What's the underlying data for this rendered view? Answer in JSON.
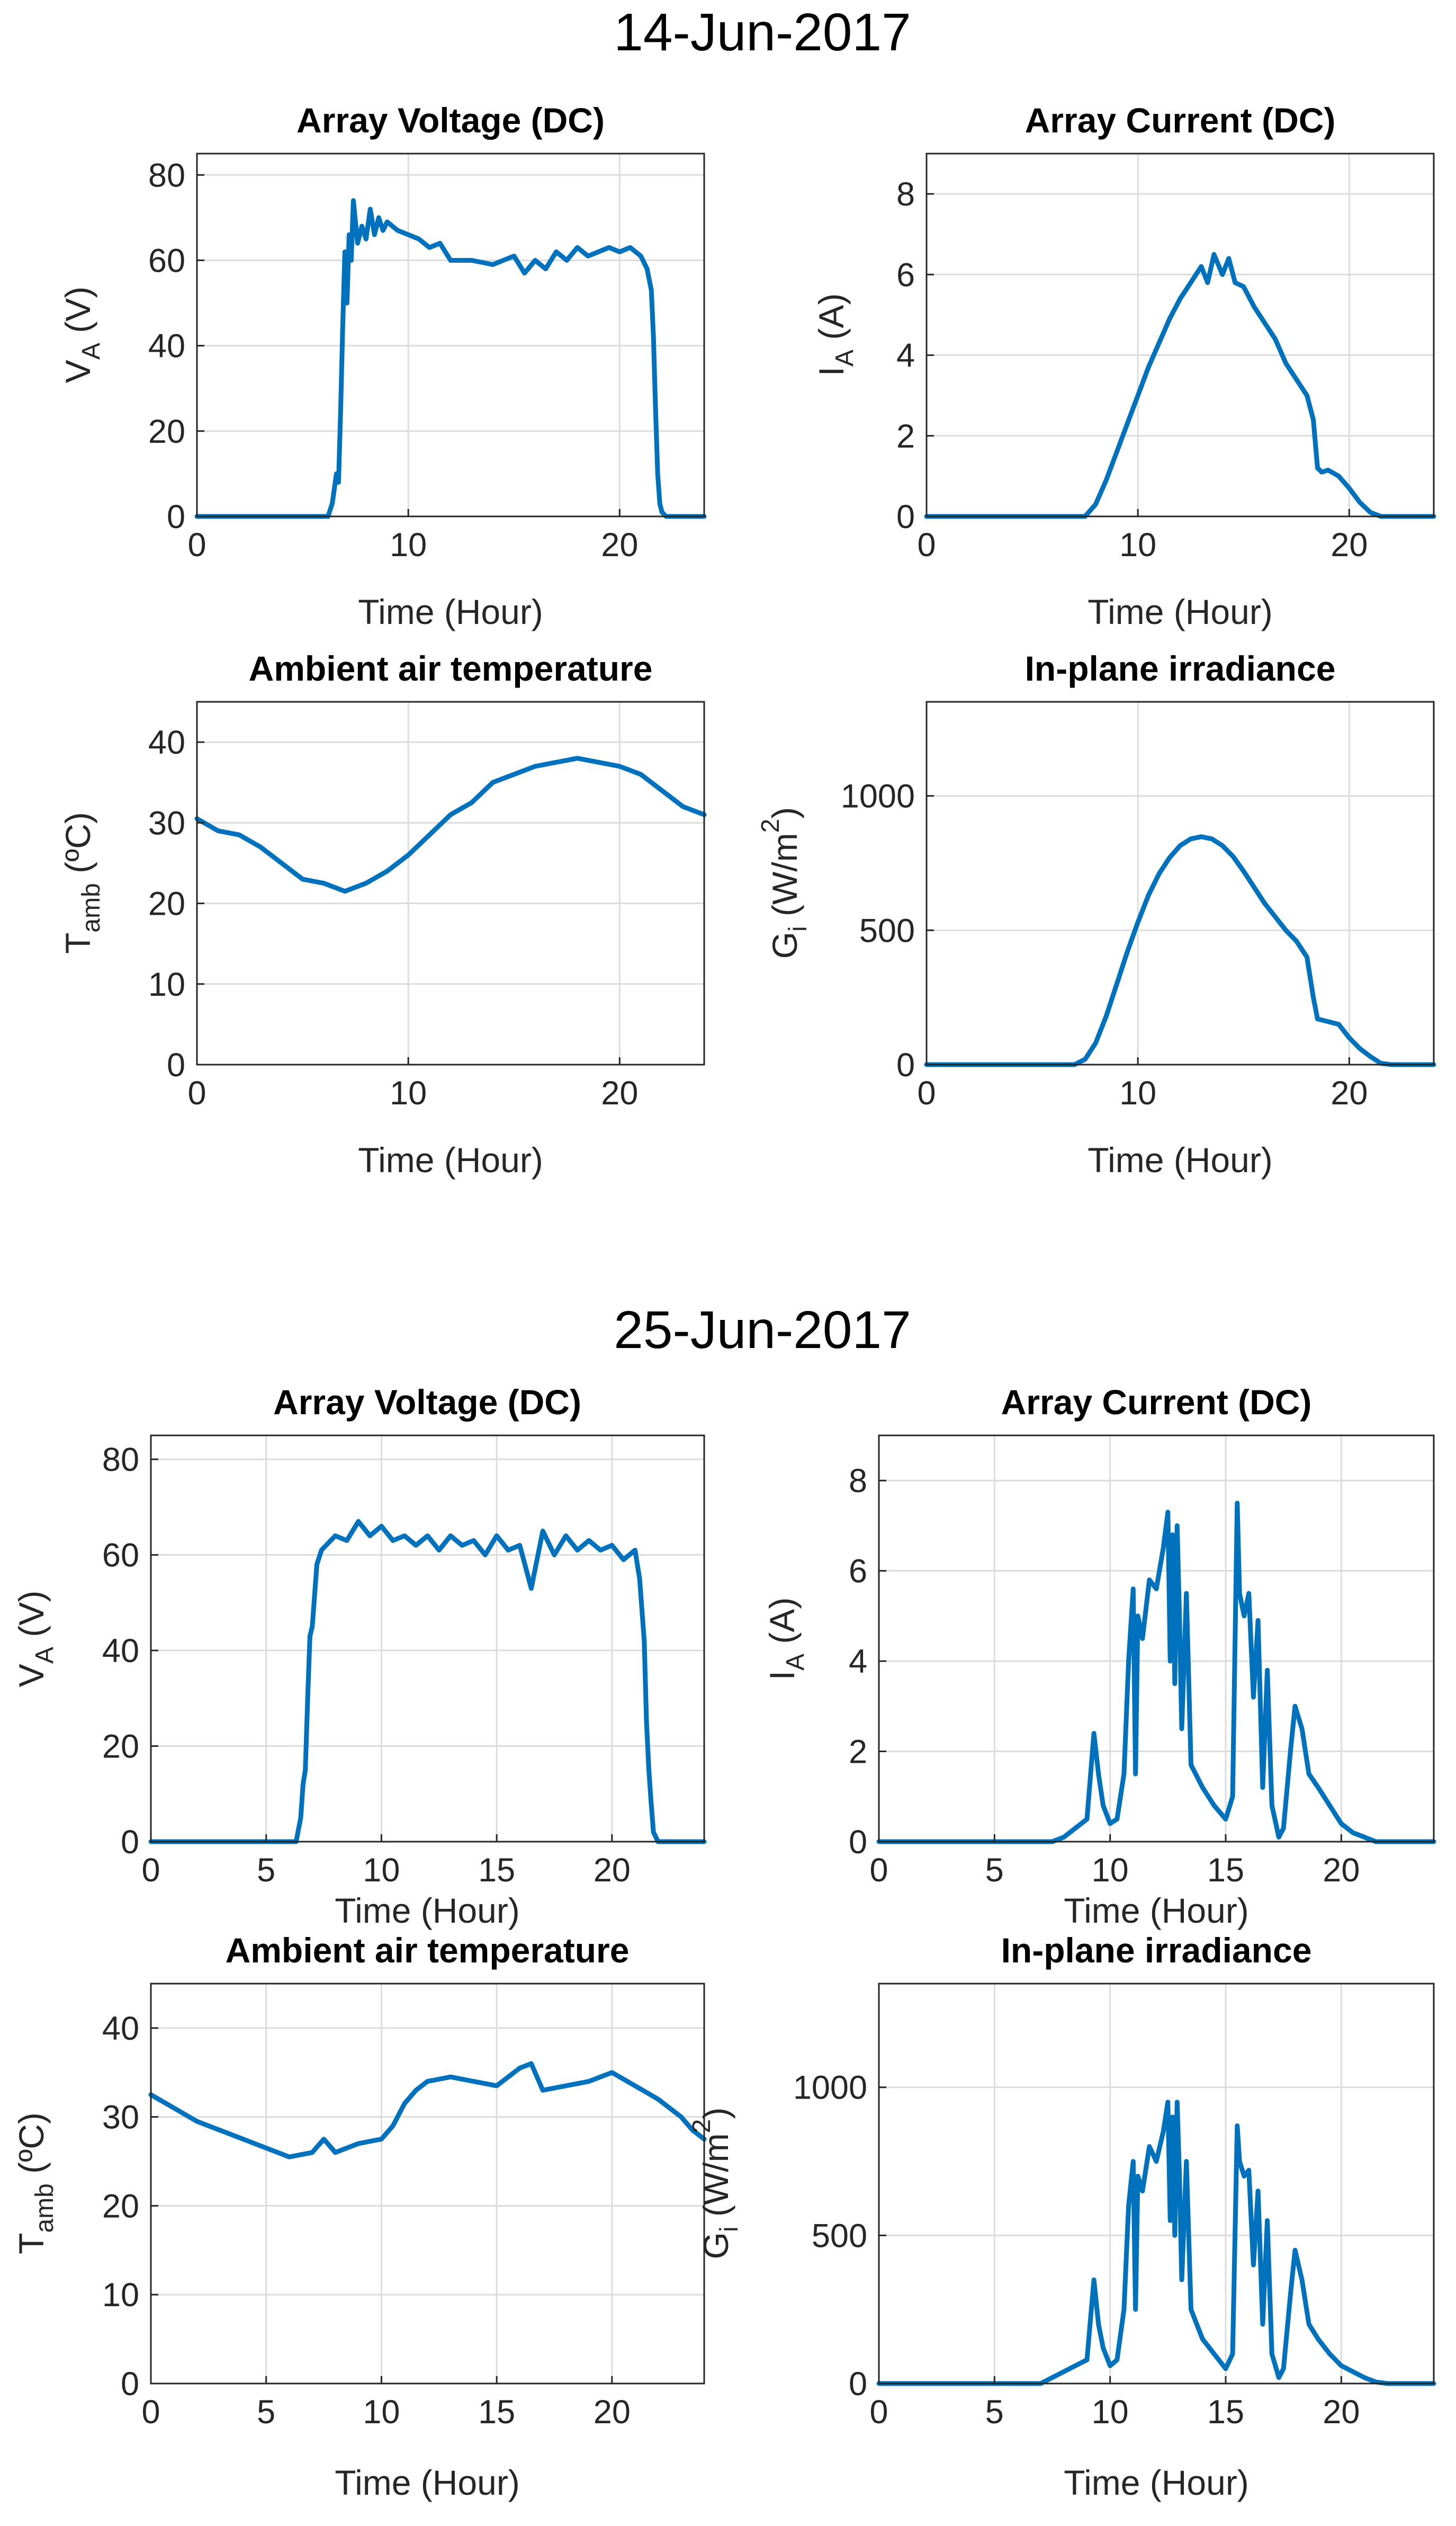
{
  "colors": {
    "line": "#0072BD",
    "grid": "#DCDCDC",
    "axis": "#262626",
    "background": "#FFFFFF"
  },
  "panels": [
    {
      "date_title": "14-Jun-2017"
    },
    {
      "date_title": "25-Jun-2017"
    }
  ],
  "chart_data": [
    {
      "type": "line",
      "day": "14-Jun-2017",
      "title": "Array Voltage (DC)",
      "xlabel": "Time (Hour)",
      "ylabel": {
        "main": "V",
        "sub": "A",
        "unit": " (V)"
      },
      "xlim": [
        0,
        24
      ],
      "ylim": [
        0,
        85
      ],
      "xticks": [
        0,
        10,
        20
      ],
      "yticks": [
        0,
        20,
        40,
        60,
        80
      ],
      "x": [
        0,
        6.2,
        6.4,
        6.6,
        6.7,
        6.8,
        6.9,
        7.0,
        7.1,
        7.2,
        7.3,
        7.4,
        7.6,
        7.8,
        8.0,
        8.2,
        8.4,
        8.6,
        8.8,
        9.0,
        9.5,
        10.0,
        10.5,
        11.0,
        11.5,
        12.0,
        13.0,
        14.0,
        15.0,
        15.5,
        16.0,
        16.5,
        17.0,
        17.5,
        18.0,
        18.5,
        19.0,
        19.5,
        20.0,
        20.5,
        21.0,
        21.3,
        21.5,
        21.6,
        21.7,
        21.8,
        21.9,
        22.0,
        22.2,
        24.0
      ],
      "y": [
        0,
        0,
        3,
        10,
        8,
        25,
        45,
        62,
        50,
        66,
        60,
        74,
        64,
        68,
        65,
        72,
        66,
        70,
        67,
        69,
        67,
        66,
        65,
        63,
        64,
        60,
        60,
        59,
        61,
        57,
        60,
        58,
        62,
        60,
        63,
        61,
        62,
        63,
        62,
        63,
        61,
        58,
        53,
        42,
        25,
        10,
        3,
        1,
        0,
        0
      ]
    },
    {
      "type": "line",
      "day": "14-Jun-2017",
      "title": "Array Current (DC)",
      "xlabel": "Time (Hour)",
      "ylabel": {
        "main": "I",
        "sub": "A",
        "unit": " (A)"
      },
      "xlim": [
        0,
        24
      ],
      "ylim": [
        0,
        9
      ],
      "xticks": [
        0,
        10,
        20
      ],
      "yticks": [
        0,
        2,
        4,
        6,
        8
      ],
      "x": [
        0,
        7.5,
        8.0,
        8.5,
        9.0,
        9.5,
        10.0,
        10.5,
        11.0,
        11.5,
        12.0,
        12.5,
        13.0,
        13.3,
        13.6,
        14.0,
        14.3,
        14.6,
        15.0,
        15.5,
        16.0,
        16.5,
        17.0,
        17.5,
        18.0,
        18.3,
        18.5,
        18.7,
        19.0,
        19.5,
        20.0,
        20.5,
        21.0,
        21.5,
        24.0
      ],
      "y": [
        0,
        0,
        0.3,
        0.9,
        1.6,
        2.3,
        3.0,
        3.7,
        4.3,
        4.9,
        5.4,
        5.8,
        6.2,
        5.8,
        6.5,
        6.0,
        6.4,
        5.8,
        5.7,
        5.2,
        4.8,
        4.4,
        3.8,
        3.4,
        3.0,
        2.4,
        1.2,
        1.1,
        1.15,
        1.0,
        0.7,
        0.35,
        0.1,
        0,
        0
      ]
    },
    {
      "type": "line",
      "day": "14-Jun-2017",
      "title": "Ambient air temperature",
      "xlabel": "Time (Hour)",
      "ylabel": {
        "main": "T",
        "sub": "amb",
        "unit": " (ºC)"
      },
      "xlim": [
        0,
        24
      ],
      "ylim": [
        0,
        45
      ],
      "xticks": [
        0,
        10,
        20
      ],
      "yticks": [
        0,
        10,
        20,
        30,
        40
      ],
      "x": [
        0,
        1,
        2,
        3,
        4,
        5,
        6,
        7,
        8,
        9,
        10,
        11,
        12,
        13,
        14,
        15,
        16,
        17,
        18,
        19,
        20,
        21,
        22,
        23,
        24
      ],
      "y": [
        30.5,
        29.0,
        28.5,
        27.0,
        25.0,
        23.0,
        22.5,
        21.5,
        22.5,
        24.0,
        26.0,
        28.5,
        31.0,
        32.5,
        35.0,
        36.0,
        37.0,
        37.5,
        38.0,
        37.5,
        37.0,
        36.0,
        34.0,
        32.0,
        31.0
      ]
    },
    {
      "type": "line",
      "day": "14-Jun-2017",
      "title": "In-plane irradiance",
      "xlabel": "Time (Hour)",
      "ylabel": {
        "main": "G",
        "sub": "i",
        "unit": " (W/m",
        "sup": "2",
        "close": ")"
      },
      "xlim": [
        0,
        24
      ],
      "ylim": [
        0,
        1350
      ],
      "xticks": [
        0,
        10,
        20
      ],
      "yticks": [
        0,
        500,
        1000
      ],
      "x": [
        0,
        7.0,
        7.5,
        8.0,
        8.5,
        9.0,
        9.5,
        10.0,
        10.5,
        11.0,
        11.5,
        12.0,
        12.5,
        13.0,
        13.5,
        14.0,
        14.5,
        15.0,
        15.5,
        16.0,
        16.5,
        17.0,
        17.5,
        18.0,
        18.3,
        18.5,
        19.0,
        19.5,
        20.0,
        20.5,
        21.0,
        21.5,
        22.0,
        24.0
      ],
      "y": [
        0,
        0,
        20,
        80,
        180,
        300,
        420,
        530,
        630,
        710,
        770,
        815,
        840,
        848,
        840,
        815,
        775,
        720,
        660,
        600,
        550,
        500,
        460,
        400,
        250,
        170,
        160,
        150,
        100,
        60,
        30,
        5,
        0,
        0
      ]
    },
    {
      "type": "line",
      "day": "25-Jun-2017",
      "title": "Array Voltage (DC)",
      "xlabel": "Time (Hour)",
      "ylabel": {
        "main": "V",
        "sub": "A",
        "unit": " (V)"
      },
      "xlim": [
        0,
        24
      ],
      "ylim": [
        0,
        85
      ],
      "xticks": [
        0,
        5,
        10,
        15,
        20
      ],
      "yticks": [
        0,
        20,
        40,
        60,
        80
      ],
      "x": [
        0,
        6.3,
        6.5,
        6.6,
        6.7,
        6.8,
        6.9,
        7.0,
        7.2,
        7.4,
        7.6,
        8.0,
        8.5,
        9.0,
        9.5,
        10.0,
        10.5,
        11.0,
        11.5,
        12.0,
        12.5,
        13.0,
        13.5,
        14.0,
        14.5,
        15.0,
        15.5,
        16.0,
        16.5,
        17.0,
        17.5,
        18.0,
        18.5,
        19.0,
        19.5,
        20.0,
        20.5,
        21.0,
        21.2,
        21.4,
        21.5,
        21.6,
        21.7,
        21.8,
        22.0,
        24.0
      ],
      "y": [
        0,
        0,
        5,
        12,
        15,
        30,
        43,
        45,
        58,
        61,
        62,
        64,
        63,
        67,
        64,
        66,
        63,
        64,
        62,
        64,
        61,
        64,
        62,
        63,
        60,
        64,
        61,
        62,
        53,
        65,
        60,
        64,
        61,
        63,
        61,
        62,
        59,
        61,
        55,
        42,
        25,
        15,
        8,
        2,
        0,
        0
      ]
    },
    {
      "type": "line",
      "day": "25-Jun-2017",
      "title": "Array Current (DC)",
      "xlabel": "Time (Hour)",
      "ylabel": {
        "main": "I",
        "sub": "A",
        "unit": " (A)"
      },
      "xlim": [
        0,
        24
      ],
      "ylim": [
        0,
        9
      ],
      "xticks": [
        0,
        5,
        10,
        15,
        20
      ],
      "yticks": [
        0,
        2,
        4,
        6,
        8
      ],
      "x": [
        0,
        7.5,
        8.0,
        8.5,
        9.0,
        9.3,
        9.5,
        9.7,
        10.0,
        10.3,
        10.6,
        10.8,
        11.0,
        11.1,
        11.2,
        11.4,
        11.7,
        12.0,
        12.3,
        12.5,
        12.6,
        12.7,
        12.8,
        12.9,
        13.0,
        13.1,
        13.3,
        13.5,
        14.0,
        14.5,
        15.0,
        15.3,
        15.5,
        15.6,
        15.8,
        16.0,
        16.2,
        16.4,
        16.6,
        16.8,
        17.0,
        17.3,
        17.5,
        17.8,
        18.0,
        18.3,
        18.6,
        19.0,
        19.5,
        20.0,
        20.5,
        21.0,
        21.5,
        24.0
      ],
      "y": [
        0,
        0,
        0.1,
        0.3,
        0.5,
        2.4,
        1.5,
        0.8,
        0.4,
        0.5,
        1.5,
        4.0,
        5.6,
        1.5,
        5.0,
        4.5,
        5.8,
        5.6,
        6.5,
        7.3,
        4.0,
        6.8,
        3.5,
        7.0,
        5.0,
        2.5,
        5.5,
        1.7,
        1.2,
        0.8,
        0.5,
        1.0,
        7.5,
        5.5,
        5.0,
        5.5,
        3.2,
        4.9,
        1.2,
        3.8,
        0.8,
        0.1,
        0.3,
        2.0,
        3.0,
        2.5,
        1.5,
        1.2,
        0.8,
        0.4,
        0.2,
        0.1,
        0,
        0
      ]
    },
    {
      "type": "line",
      "day": "25-Jun-2017",
      "title": "Ambient air temperature",
      "xlabel": "Time (Hour)",
      "ylabel": {
        "main": "T",
        "sub": "amb",
        "unit": " (ºC)"
      },
      "xlim": [
        0,
        24
      ],
      "ylim": [
        0,
        45
      ],
      "xticks": [
        0,
        5,
        10,
        15,
        20
      ],
      "yticks": [
        0,
        10,
        20,
        30,
        40
      ],
      "x": [
        0,
        1,
        2,
        3,
        4,
        5,
        6,
        7,
        7.5,
        8,
        9,
        10,
        10.5,
        11,
        11.5,
        12,
        13,
        14,
        15,
        15.5,
        16,
        16.5,
        17,
        18,
        19,
        20,
        21,
        22,
        23,
        23.5,
        24
      ],
      "y": [
        32.5,
        31.0,
        29.5,
        28.5,
        27.5,
        26.5,
        25.5,
        26.0,
        27.5,
        26.0,
        27.0,
        27.5,
        29.0,
        31.5,
        33.0,
        34.0,
        34.5,
        34.0,
        33.5,
        34.5,
        35.5,
        36.0,
        33.0,
        33.5,
        34.0,
        35.0,
        33.5,
        32.0,
        30.0,
        28.5,
        27.5
      ]
    },
    {
      "type": "line",
      "day": "25-Jun-2017",
      "title": "In-plane irradiance",
      "xlabel": "Time (Hour)",
      "ylabel": {
        "main": "G",
        "sub": "i",
        "unit": " (W/m",
        "sup": "2",
        "close": ")"
      },
      "xlim": [
        0,
        24
      ],
      "ylim": [
        0,
        1350
      ],
      "xticks": [
        0,
        5,
        10,
        15,
        20
      ],
      "yticks": [
        0,
        500,
        1000
      ],
      "x": [
        0,
        7.0,
        7.5,
        8.0,
        8.5,
        9.0,
        9.3,
        9.5,
        9.7,
        10.0,
        10.3,
        10.6,
        10.8,
        11.0,
        11.1,
        11.2,
        11.4,
        11.7,
        12.0,
        12.3,
        12.5,
        12.6,
        12.7,
        12.8,
        12.9,
        13.0,
        13.1,
        13.3,
        13.5,
        14.0,
        14.5,
        15.0,
        15.3,
        15.5,
        15.6,
        15.8,
        16.0,
        16.2,
        16.4,
        16.6,
        16.8,
        17.0,
        17.3,
        17.5,
        17.8,
        18.0,
        18.3,
        18.6,
        19.0,
        19.5,
        20.0,
        20.5,
        21.0,
        21.5,
        22.0,
        24.0
      ],
      "y": [
        0,
        0,
        20,
        40,
        60,
        80,
        350,
        200,
        120,
        60,
        80,
        250,
        600,
        750,
        250,
        700,
        650,
        800,
        750,
        850,
        950,
        550,
        900,
        500,
        950,
        700,
        350,
        750,
        250,
        150,
        100,
        50,
        100,
        870,
        750,
        700,
        720,
        400,
        650,
        200,
        550,
        100,
        20,
        50,
        300,
        450,
        350,
        200,
        150,
        100,
        60,
        40,
        20,
        5,
        0,
        0
      ]
    }
  ]
}
